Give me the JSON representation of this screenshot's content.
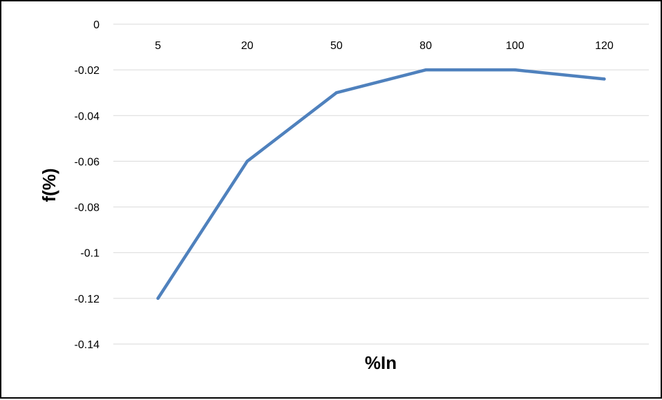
{
  "chart_data": {
    "type": "line",
    "title": "",
    "xlabel": "%In",
    "ylabel": "f(%)",
    "categories": [
      "5",
      "20",
      "50",
      "80",
      "100",
      "120"
    ],
    "x_tick_labels": [
      "5",
      "20",
      "50",
      "80",
      "100",
      "120"
    ],
    "x_axis_position": "top",
    "series": [
      {
        "values": [
          -0.12,
          -0.06,
          -0.03,
          -0.02,
          -0.02,
          -0.024
        ]
      }
    ],
    "ylim": [
      -0.14,
      0
    ],
    "y_ticks": [
      0,
      -0.02,
      -0.04,
      -0.06,
      -0.08,
      -0.1,
      -0.12,
      -0.14
    ],
    "y_tick_labels": [
      "0",
      "-0.02",
      "-0.04",
      "-0.06",
      "-0.08",
      "-0.1",
      "-0.12",
      "-0.14"
    ],
    "grid": true,
    "legend": "none",
    "colors": {
      "line": "#4f81bd",
      "grid": "#d9d9d9",
      "border": "#000000"
    }
  }
}
